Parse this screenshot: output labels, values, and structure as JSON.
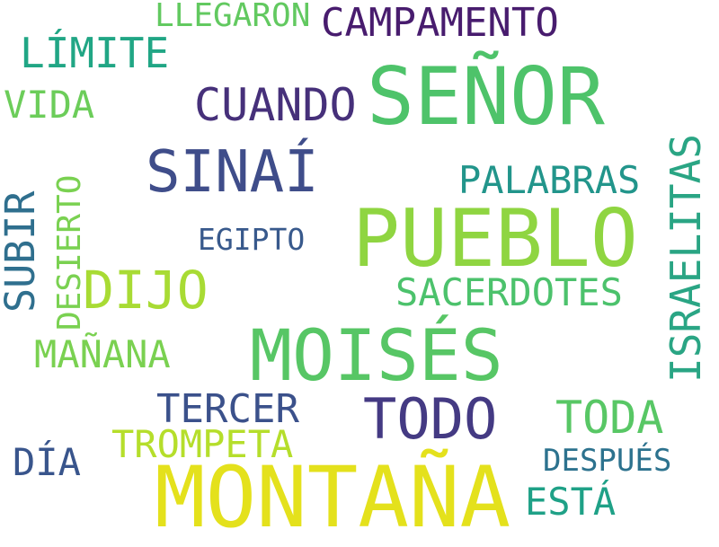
{
  "words": {
    "senor": {
      "text": "SEÑOR",
      "color": "#4ec36a"
    },
    "pueblo": {
      "text": "PUEBLO",
      "color": "#8fd541"
    },
    "moises": {
      "text": "MOISÉS",
      "color": "#57c665"
    },
    "montana": {
      "text": "MONTAÑA",
      "color": "#e4e11c"
    },
    "sinai": {
      "text": "SINAÍ",
      "color": "#3f4d8a"
    },
    "todo": {
      "text": "TODO",
      "color": "#443a83"
    },
    "cuando": {
      "text": "CUANDO",
      "color": "#46307a"
    },
    "campamento": {
      "text": "CAMPAMENTO",
      "color": "#481c6e"
    },
    "limite": {
      "text": "LÍMITE",
      "color": "#21a685"
    },
    "llegaron": {
      "text": "LLEGARON",
      "color": "#62c960"
    },
    "vida": {
      "text": "VIDA",
      "color": "#6ccd5a"
    },
    "palabras": {
      "text": "PALABRAS",
      "color": "#22958b"
    },
    "israelitas": {
      "text": "ISRAELITAS",
      "color": "#2aa584"
    },
    "egipto": {
      "text": "EGIPTO",
      "color": "#38598c"
    },
    "subir": {
      "text": "SUBIR",
      "color": "#2f6f8e"
    },
    "desierto": {
      "text": "DESIERTO",
      "color": "#7ad151"
    },
    "dijo": {
      "text": "DIJO",
      "color": "#a8db34"
    },
    "sacerdotes": {
      "text": "SACERDOTES",
      "color": "#4cc26c"
    },
    "manana": {
      "text": "MAÑANA",
      "color": "#7ad151"
    },
    "tercer": {
      "text": "TERCER",
      "color": "#3b518b"
    },
    "toda": {
      "text": "TODA",
      "color": "#58c765"
    },
    "trompeta": {
      "text": "TROMPETA",
      "color": "#b5de2b"
    },
    "dia": {
      "text": "DÍA",
      "color": "#39558c"
    },
    "despues": {
      "text": "DESPUÉS",
      "color": "#2c728e"
    },
    "esta": {
      "text": "ESTÁ",
      "color": "#1fa187"
    }
  }
}
